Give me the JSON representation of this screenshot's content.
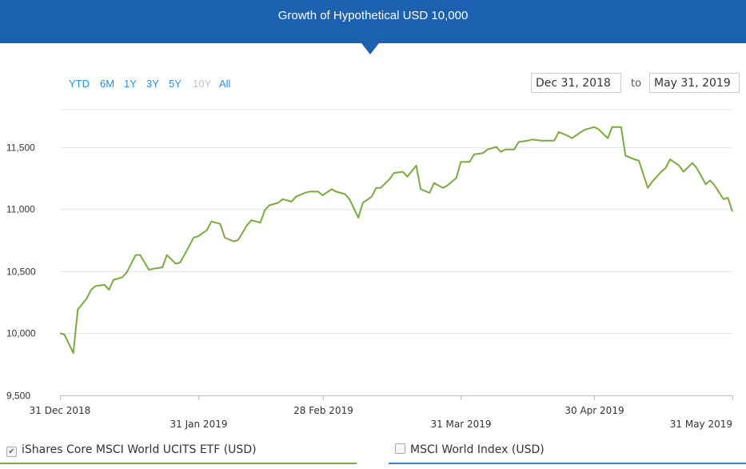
{
  "banner": {
    "title": "Growth of Hypothetical USD 10,000"
  },
  "range_buttons": [
    {
      "label": "YTD",
      "enabled": true
    },
    {
      "label": "6M",
      "enabled": true
    },
    {
      "label": "1Y",
      "enabled": true
    },
    {
      "label": "3Y",
      "enabled": true
    },
    {
      "label": "5Y",
      "enabled": true
    },
    {
      "label": "10Y",
      "enabled": false
    },
    {
      "label": "All",
      "enabled": true
    }
  ],
  "date_range": {
    "from": "Dec 31, 2018",
    "to_label": "to",
    "to": "May 31, 2019"
  },
  "legend": [
    {
      "label": "iShares Core MSCI World UCITS ETF (USD)",
      "checked": true,
      "color": "#7aab3e"
    },
    {
      "label": "MSCI World Index (USD)",
      "checked": false,
      "color": "#3b82d4"
    }
  ],
  "colors": {
    "banner": "#1b61b0",
    "link": "#2d8fe0",
    "series": "#7aab3e",
    "grid": "#e6e6e6"
  },
  "chart_data": {
    "type": "line",
    "ylim": [
      9500,
      11800
    ],
    "y_ticks": [
      9500,
      10000,
      10500,
      11000,
      11500
    ],
    "y_tick_labels": [
      "9,500",
      "10,000",
      "10,500",
      "11,000",
      "11,500"
    ],
    "x_range": [
      "2018-12-31",
      "2019-05-31"
    ],
    "x_ticks": [
      {
        "date": "2018-12-31",
        "label": "31 Dec 2018",
        "row": 1
      },
      {
        "date": "2019-01-31",
        "label": "31 Jan 2019",
        "row": 2
      },
      {
        "date": "2019-02-28",
        "label": "28 Feb 2019",
        "row": 1
      },
      {
        "date": "2019-03-31",
        "label": "31 Mar 2019",
        "row": 2
      },
      {
        "date": "2019-04-30",
        "label": "30 Apr 2019",
        "row": 1
      },
      {
        "date": "2019-05-31",
        "label": "31 May 2019",
        "row": 2
      }
    ],
    "series": [
      {
        "name": "iShares Core MSCI World UCITS ETF (USD)",
        "points": [
          [
            "2018-12-31",
            10000
          ],
          [
            "2019-01-01",
            9990
          ],
          [
            "2019-01-03",
            9840
          ],
          [
            "2019-01-04",
            10190
          ],
          [
            "2019-01-06",
            10280
          ],
          [
            "2019-01-07",
            10350
          ],
          [
            "2019-01-08",
            10380
          ],
          [
            "2019-01-10",
            10390
          ],
          [
            "2019-01-11",
            10350
          ],
          [
            "2019-01-12",
            10430
          ],
          [
            "2019-01-14",
            10450
          ],
          [
            "2019-01-15",
            10490
          ],
          [
            "2019-01-17",
            10630
          ],
          [
            "2019-01-18",
            10630
          ],
          [
            "2019-01-20",
            10510
          ],
          [
            "2019-01-21",
            10520
          ],
          [
            "2019-01-23",
            10530
          ],
          [
            "2019-01-24",
            10630
          ],
          [
            "2019-01-26",
            10560
          ],
          [
            "2019-01-27",
            10570
          ],
          [
            "2019-01-29",
            10700
          ],
          [
            "2019-01-30",
            10770
          ],
          [
            "2019-01-31",
            10780
          ],
          [
            "2019-02-02",
            10830
          ],
          [
            "2019-02-03",
            10900
          ],
          [
            "2019-02-05",
            10880
          ],
          [
            "2019-02-06",
            10770
          ],
          [
            "2019-02-08",
            10740
          ],
          [
            "2019-02-09",
            10750
          ],
          [
            "2019-02-11",
            10870
          ],
          [
            "2019-02-12",
            10910
          ],
          [
            "2019-02-14",
            10890
          ],
          [
            "2019-02-15",
            10990
          ],
          [
            "2019-02-16",
            11030
          ],
          [
            "2019-02-18",
            11050
          ],
          [
            "2019-02-19",
            11080
          ],
          [
            "2019-02-21",
            11060
          ],
          [
            "2019-02-22",
            11100
          ],
          [
            "2019-02-24",
            11130
          ],
          [
            "2019-02-25",
            11140
          ],
          [
            "2019-02-27",
            11140
          ],
          [
            "2019-02-28",
            11110
          ],
          [
            "2019-03-02",
            11160
          ],
          [
            "2019-03-03",
            11140
          ],
          [
            "2019-03-05",
            11120
          ],
          [
            "2019-03-06",
            11080
          ],
          [
            "2019-03-08",
            10930
          ],
          [
            "2019-03-09",
            11050
          ],
          [
            "2019-03-11",
            11100
          ],
          [
            "2019-03-12",
            11170
          ],
          [
            "2019-03-13",
            11170
          ],
          [
            "2019-03-15",
            11240
          ],
          [
            "2019-03-16",
            11290
          ],
          [
            "2019-03-18",
            11300
          ],
          [
            "2019-03-19",
            11260
          ],
          [
            "2019-03-21",
            11350
          ],
          [
            "2019-03-22",
            11160
          ],
          [
            "2019-03-24",
            11130
          ],
          [
            "2019-03-25",
            11210
          ],
          [
            "2019-03-27",
            11170
          ],
          [
            "2019-03-28",
            11190
          ],
          [
            "2019-03-30",
            11250
          ],
          [
            "2019-03-31",
            11380
          ],
          [
            "2019-04-02",
            11380
          ],
          [
            "2019-04-03",
            11440
          ],
          [
            "2019-04-05",
            11450
          ],
          [
            "2019-04-06",
            11480
          ],
          [
            "2019-04-08",
            11500
          ],
          [
            "2019-04-09",
            11460
          ],
          [
            "2019-04-10",
            11480
          ],
          [
            "2019-04-12",
            11480
          ],
          [
            "2019-04-13",
            11540
          ],
          [
            "2019-04-15",
            11550
          ],
          [
            "2019-04-16",
            11560
          ],
          [
            "2019-04-18",
            11550
          ],
          [
            "2019-04-19",
            11550
          ],
          [
            "2019-04-21",
            11550
          ],
          [
            "2019-04-22",
            11620
          ],
          [
            "2019-04-24",
            11590
          ],
          [
            "2019-04-25",
            11570
          ],
          [
            "2019-04-27",
            11620
          ],
          [
            "2019-04-28",
            11640
          ],
          [
            "2019-04-30",
            11660
          ],
          [
            "2019-05-01",
            11640
          ],
          [
            "2019-05-03",
            11570
          ],
          [
            "2019-05-04",
            11660
          ],
          [
            "2019-05-06",
            11660
          ],
          [
            "2019-05-07",
            11430
          ],
          [
            "2019-05-09",
            11400
          ],
          [
            "2019-05-10",
            11390
          ],
          [
            "2019-05-12",
            11170
          ],
          [
            "2019-05-13",
            11220
          ],
          [
            "2019-05-15",
            11300
          ],
          [
            "2019-05-16",
            11330
          ],
          [
            "2019-05-17",
            11400
          ],
          [
            "2019-05-19",
            11350
          ],
          [
            "2019-05-20",
            11300
          ],
          [
            "2019-05-22",
            11370
          ],
          [
            "2019-05-23",
            11330
          ],
          [
            "2019-05-25",
            11200
          ],
          [
            "2019-05-26",
            11230
          ],
          [
            "2019-05-27",
            11190
          ],
          [
            "2019-05-29",
            11080
          ],
          [
            "2019-05-30",
            11090
          ],
          [
            "2019-05-31",
            10980
          ]
        ]
      }
    ]
  }
}
